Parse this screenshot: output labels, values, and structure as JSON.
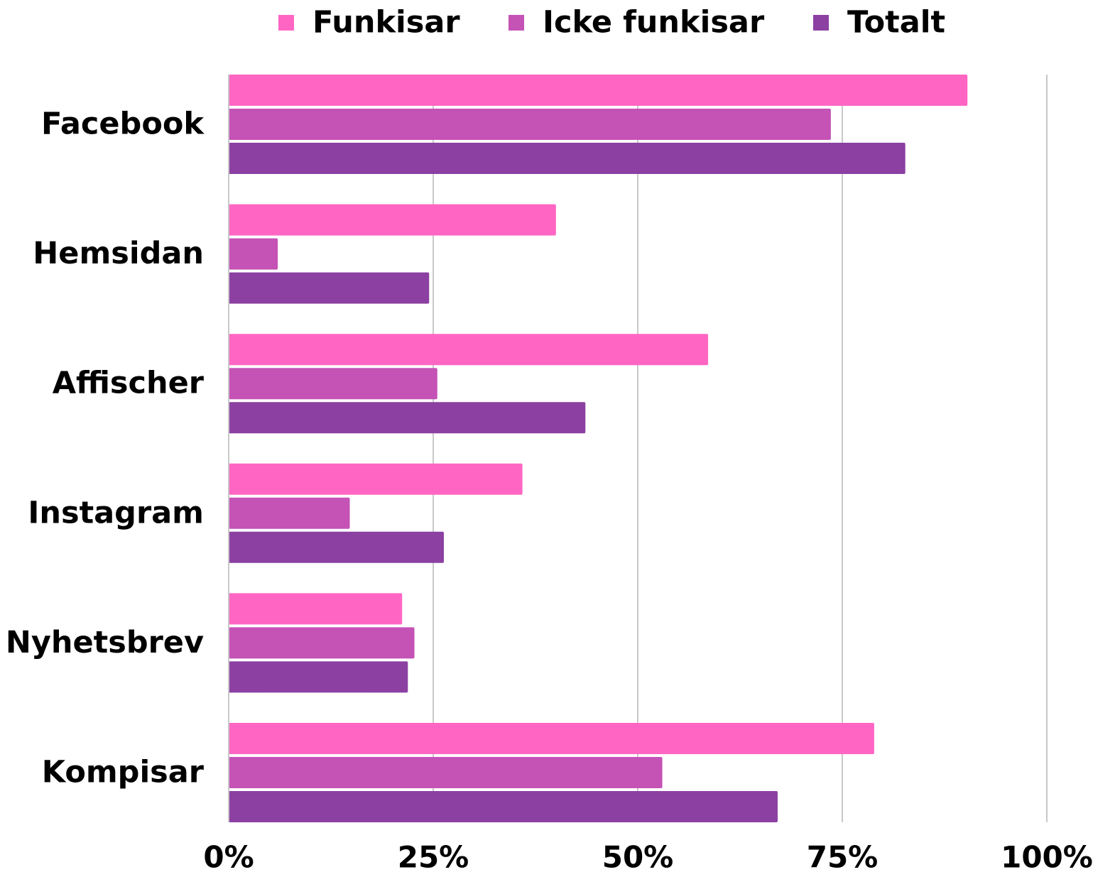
{
  "chart_data": {
    "type": "hbar",
    "categories": [
      "Facebook",
      "Hemsidan",
      "Affischer",
      "Instagram",
      "Nyhetsbrev",
      "Kompisar"
    ],
    "series": [
      {
        "name": "Funkisar",
        "color": "#ff66c4",
        "values": [
          90.3,
          40,
          58.6,
          35.9,
          21.2,
          78.9
        ]
      },
      {
        "name": "Icke funkisar",
        "color": "#c552b5",
        "values": [
          73.6,
          6,
          25.5,
          14.8,
          22.7,
          53
        ]
      },
      {
        "name": "Totalt",
        "color": "#8b40a2",
        "values": [
          82.7,
          24.5,
          43.6,
          26.3,
          21.9,
          67.1
        ]
      }
    ],
    "xlim": [
      0,
      100
    ],
    "xticks": [
      {
        "value": 0,
        "label": "0%"
      },
      {
        "value": 25,
        "label": "25%"
      },
      {
        "value": 50,
        "label": "50%"
      },
      {
        "value": 75,
        "label": "75%"
      },
      {
        "value": 100,
        "label": "100%"
      }
    ],
    "grid": true
  }
}
